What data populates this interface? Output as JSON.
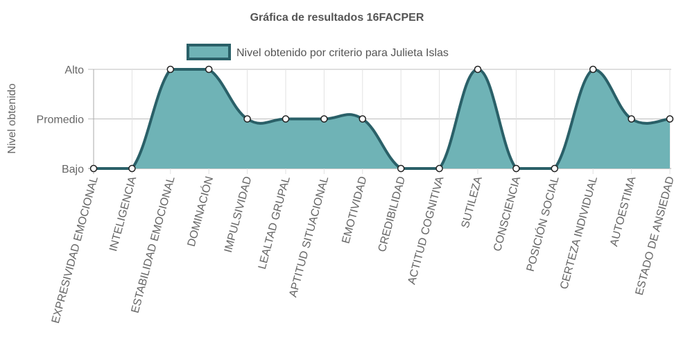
{
  "chart_data": {
    "type": "area",
    "title": "Gráfica de resultados 16FACPER",
    "xlabel": "",
    "ylabel": "Nivel obtenido",
    "y_levels": [
      "Bajo",
      "Promedio",
      "Alto"
    ],
    "categories": [
      "EXPRESIVIDAD EMOCIONAL",
      "INTELIGENCIA",
      "ESTABILIDAD EMOCIONAL",
      "DOMINACIÓN",
      "IMPULSIVIDAD",
      "LEALTAD GRUPAL",
      "APTITUD SITUACIONAL",
      "EMOTIVIDAD",
      "CREDIBILIDAD",
      "ACTITUD COGNITIVA",
      "SUTILEZA",
      "CONSCIENCIA",
      "POSICIÓN SOCIAL",
      "CERTEZA INDIVIDUAL",
      "AUTOESTIMA",
      "ESTADO DE ANSIEDAD"
    ],
    "series": [
      {
        "name": "Nivel obtenido por criterio para Julieta Islas",
        "values": [
          "Bajo",
          "Bajo",
          "Alto",
          "Alto",
          "Promedio",
          "Promedio",
          "Promedio",
          "Promedio",
          "Bajo",
          "Bajo",
          "Alto",
          "Bajo",
          "Bajo",
          "Alto",
          "Promedio",
          "Promedio"
        ],
        "fill_color": "#6fb3b6",
        "line_color": "#2a6068"
      }
    ],
    "legend_position": "top",
    "grid": true
  }
}
